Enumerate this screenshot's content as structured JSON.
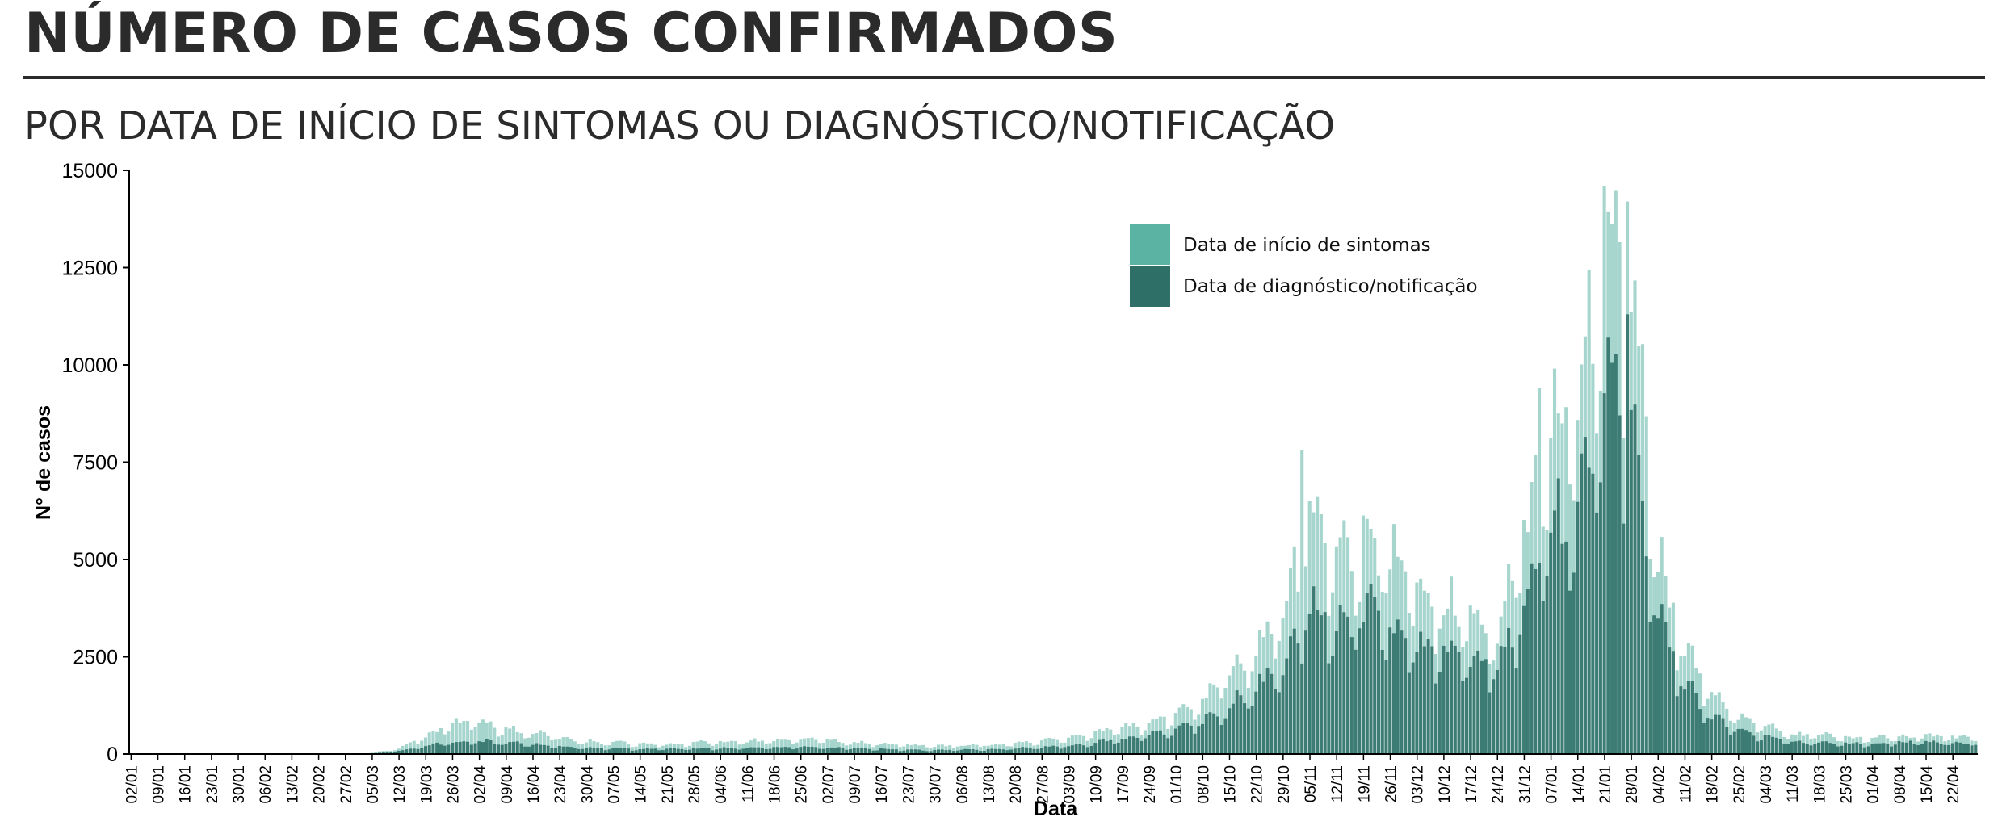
{
  "header": {
    "title": "NÚMERO DE CASOS CONFIRMADOS",
    "subtitle": "POR DATA DE INÍCIO DE SINTOMAS OU DIAGNÓSTICO/NOTIFICAÇÃO"
  },
  "chart_data": {
    "type": "bar",
    "stacking": "overlapped",
    "xlabel": "Data",
    "ylabel": "N° de casos",
    "ylim": [
      0,
      15000
    ],
    "yticks": [
      0,
      2500,
      5000,
      7500,
      10000,
      12500,
      15000
    ],
    "grid": false,
    "legend_position": "top-center",
    "x_start_date": "2020-01-02",
    "x_end_date": "2021-04-28",
    "x_tick_labels": [
      "02/01",
      "09/01",
      "16/01",
      "23/01",
      "30/01",
      "06/02",
      "13/02",
      "20/02",
      "27/02",
      "05/03",
      "12/03",
      "19/03",
      "26/03",
      "02/04",
      "09/04",
      "16/04",
      "23/04",
      "30/04",
      "07/05",
      "14/05",
      "21/05",
      "28/05",
      "04/06",
      "11/06",
      "18/06",
      "25/06",
      "02/07",
      "09/07",
      "16/07",
      "23/07",
      "30/07",
      "06/08",
      "13/08",
      "20/08",
      "27/08",
      "03/09",
      "10/09",
      "17/09",
      "24/09",
      "01/10",
      "08/10",
      "15/10",
      "22/10",
      "29/10",
      "05/11",
      "12/11",
      "19/11",
      "26/11",
      "03/12",
      "10/12",
      "17/12",
      "24/12",
      "31/12",
      "07/01",
      "14/01",
      "21/01",
      "28/01",
      "04/02",
      "11/02",
      "18/02",
      "25/02",
      "04/03",
      "11/03",
      "18/03",
      "25/03",
      "01/04",
      "08/04",
      "15/04",
      "22/04"
    ],
    "series": [
      {
        "name": "Data de início de sintomas",
        "color": "#5bb3a4",
        "opacity": 0.55,
        "weekly_values": [
          0,
          0,
          0,
          0,
          0,
          0,
          0,
          0,
          0,
          30,
          150,
          450,
          800,
          800,
          650,
          550,
          400,
          320,
          300,
          250,
          260,
          280,
          300,
          330,
          360,
          380,
          360,
          310,
          270,
          230,
          210,
          220,
          240,
          280,
          330,
          420,
          550,
          650,
          780,
          1000,
          1450,
          2000,
          2700,
          3600,
          6000,
          5000,
          5600,
          5100,
          4300,
          3800,
          3600,
          3200,
          5700,
          8300,
          9000,
          13000,
          12200,
          5200,
          2600,
          1500,
          950,
          700,
          500,
          480,
          420,
          410,
          450,
          460,
          430
        ],
        "peak_values": [
          {
            "date": "2021-01-21",
            "value": 14600
          },
          {
            "date": "2021-01-27",
            "value": 14200
          },
          {
            "date": "2020-11-03",
            "value": 7800
          },
          {
            "date": "2021-01-04",
            "value": 9400
          }
        ]
      },
      {
        "name": "Data de diagnóstico/notificação",
        "color": "#2f6f68",
        "opacity": 0.88,
        "weekly_values": [
          0,
          0,
          0,
          0,
          0,
          0,
          0,
          0,
          0,
          10,
          80,
          220,
          300,
          330,
          300,
          250,
          200,
          160,
          150,
          130,
          135,
          140,
          150,
          160,
          170,
          180,
          170,
          150,
          130,
          110,
          100,
          110,
          120,
          140,
          170,
          220,
          300,
          380,
          480,
          620,
          850,
          1200,
          1700,
          2300,
          3800,
          3400,
          3700,
          3400,
          2900,
          2700,
          2500,
          2300,
          3900,
          5600,
          6300,
          9500,
          8800,
          3600,
          1800,
          1000,
          620,
          450,
          320,
          300,
          270,
          260,
          300,
          310,
          290
        ],
        "peak_values": [
          {
            "date": "2021-01-27",
            "value": 11300
          },
          {
            "date": "2021-01-22",
            "value": 10700
          }
        ]
      }
    ]
  }
}
